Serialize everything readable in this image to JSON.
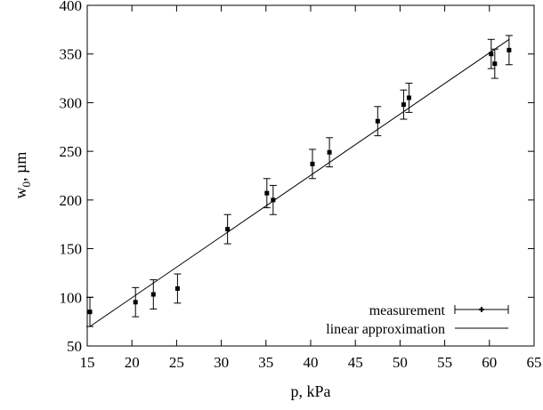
{
  "chart_data": {
    "type": "scatter",
    "xlabel": "p, kPa",
    "ylabel": "w",
    "ylabel_sub": "0",
    "ylabel_unit": ", µm",
    "xlim": [
      15,
      65
    ],
    "ylim": [
      50,
      400
    ],
    "xticks": [
      15,
      20,
      25,
      30,
      35,
      40,
      45,
      50,
      55,
      60,
      65
    ],
    "yticks": [
      50,
      100,
      150,
      200,
      250,
      300,
      350,
      400
    ],
    "grid": false,
    "legend_position": "bottom-right",
    "series": [
      {
        "name": "measurement",
        "style": "points-with-errorbars",
        "points": [
          {
            "x": 15.3,
            "y": 85,
            "err": 15
          },
          {
            "x": 20.4,
            "y": 95,
            "err": 15
          },
          {
            "x": 22.4,
            "y": 103,
            "err": 15
          },
          {
            "x": 25.1,
            "y": 109,
            "err": 15
          },
          {
            "x": 30.7,
            "y": 170,
            "err": 15
          },
          {
            "x": 35.1,
            "y": 207,
            "err": 15
          },
          {
            "x": 35.8,
            "y": 200,
            "err": 15
          },
          {
            "x": 40.2,
            "y": 237,
            "err": 15
          },
          {
            "x": 42.1,
            "y": 249,
            "err": 15
          },
          {
            "x": 47.5,
            "y": 281,
            "err": 15
          },
          {
            "x": 50.4,
            "y": 298,
            "err": 15
          },
          {
            "x": 51.0,
            "y": 305,
            "err": 15
          },
          {
            "x": 60.2,
            "y": 350,
            "err": 15
          },
          {
            "x": 60.6,
            "y": 340,
            "err": 15
          },
          {
            "x": 62.2,
            "y": 354,
            "err": 15
          }
        ]
      },
      {
        "name": "linear approximation",
        "style": "line",
        "x": [
          15.3,
          62.2
        ],
        "y": [
          70,
          365
        ]
      }
    ]
  }
}
